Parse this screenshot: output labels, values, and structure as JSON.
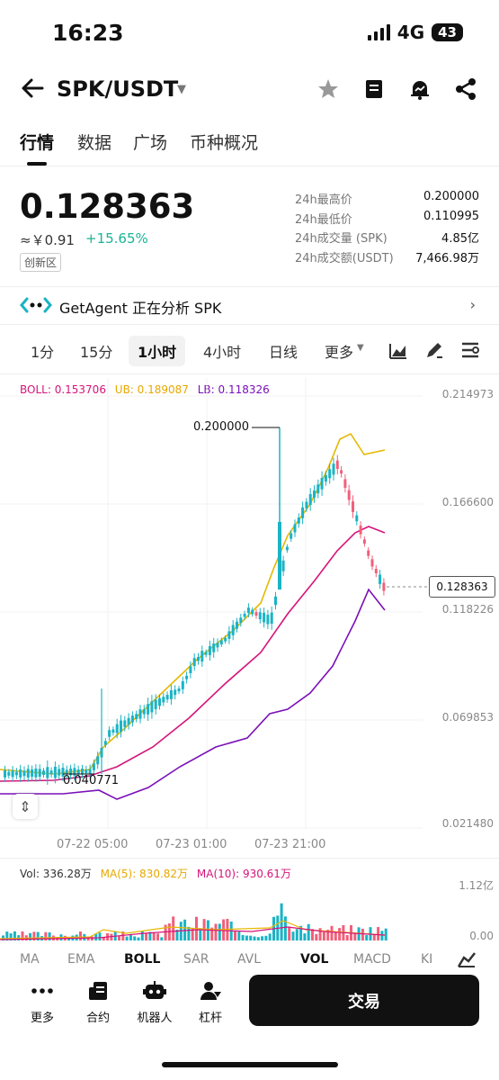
{
  "status": {
    "time": "16:23",
    "network": "4G",
    "battery": "43"
  },
  "header": {
    "pair": "SPK/USDT"
  },
  "tabs": [
    "行情",
    "数据",
    "广场",
    "币种概况"
  ],
  "price": {
    "last": "0.128363",
    "cny": "≈￥0.91",
    "change": "+15.65%",
    "zone": "创新区"
  },
  "stats": [
    {
      "label": "24h最高价",
      "value": "0.200000"
    },
    {
      "label": "24h最低价",
      "value": "0.110995"
    },
    {
      "label": "24h成交量 (SPK)",
      "value": "4.85亿"
    },
    {
      "label": "24h成交额(USDT)",
      "value": "7,466.98万"
    }
  ],
  "agent": {
    "text": "GetAgent 正在分析 SPK"
  },
  "intervals": [
    "1分",
    "15分",
    "1小时",
    "4小时",
    "日线",
    "更多"
  ],
  "chart": {
    "boll": "BOLL: 0.153706",
    "ub": "UB: 0.189087",
    "lb": "LB: 0.118326",
    "axis": [
      "0.214973",
      "0.166600",
      "0.118226",
      "0.069853",
      "0.021480"
    ],
    "high_mark": "0.200000",
    "low_mark": "0.040771",
    "current": "0.128363",
    "times": [
      "07-22 05:00",
      "07-23 01:00",
      "07-23 21:00"
    ],
    "vol": "Vol: 336.28万",
    "ma5": "MA(5): 830.82万",
    "ma10": "MA(10): 930.61万",
    "vol_axis": [
      "1.12亿",
      "0.00"
    ],
    "colors": {
      "up": "#1bb3c5",
      "down": "#f0607a",
      "ub": "#e6b800",
      "mid": "#d6147a",
      "lb": "#7a10b8"
    }
  },
  "indicators": [
    "MA",
    "EMA",
    "BOLL",
    "SAR",
    "AVL",
    "VOL",
    "MACD",
    "KI"
  ],
  "bottom_nav": [
    "更多",
    "合约",
    "机器人",
    "杠杆"
  ],
  "trade_button": "交易"
}
